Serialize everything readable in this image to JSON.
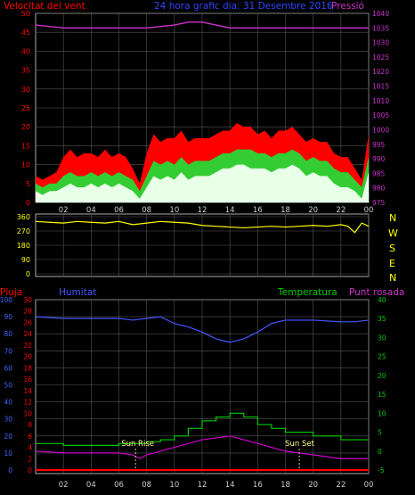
{
  "header": {
    "left_label": "Velocitat del vent",
    "center_label": "24 hora grafic dia:  31 Desembre 2016",
    "right_label": "Pressió"
  },
  "wind_dir_axis": [
    "N",
    "W",
    "S",
    "E",
    "N"
  ],
  "lower_header": {
    "rain": "Pluja",
    "humidity": "Humitat",
    "temperature": "Temperatura",
    "dewpoint": "Punt rosada"
  },
  "annotations": {
    "sunrise": "Sun Rise",
    "sunset": "Sun Set"
  },
  "colors": {
    "wind_gust": "#ff0000",
    "wind_avg": "#33cc33",
    "wind_low": "#e8ffe8",
    "pressure": "#cc33cc",
    "direction": "#ffff00",
    "humidity": "#4455ff",
    "temperature": "#00cc00",
    "dewpoint": "#cc00cc",
    "rain": "#ff0000",
    "grid": "#555555",
    "axis_red": "#ff0000",
    "axis_blue": "#4466ff",
    "axis_green": "#00cc00",
    "axis_magenta": "#cc33cc"
  },
  "chart_data": [
    {
      "type": "line",
      "x_ticks": [
        "02",
        "04",
        "06",
        "08",
        "10",
        "12",
        "14",
        "16",
        "18",
        "20",
        "22",
        "00"
      ],
      "y_ticks_left": [
        0,
        5,
        10,
        15,
        20,
        25,
        30,
        35,
        40,
        45,
        50
      ],
      "y_ticks_right": [
        975,
        980,
        985,
        990,
        995,
        1000,
        1005,
        1010,
        1015,
        1020,
        1025,
        1030,
        1035,
        1040
      ],
      "ylim_left": [
        0,
        50
      ],
      "ylim_right": [
        975,
        1040
      ],
      "xlim": [
        0,
        24
      ],
      "series": [
        {
          "key": "gust",
          "x": [
            0,
            0.5,
            1,
            1.5,
            2,
            2.5,
            3,
            3.5,
            4,
            4.5,
            5,
            5.5,
            6,
            6.5,
            7,
            7.5,
            8,
            8.5,
            9,
            9.5,
            10,
            10.5,
            11,
            11.5,
            12,
            12.5,
            13,
            13.5,
            14,
            14.5,
            15,
            15.5,
            16,
            16.5,
            17,
            17.5,
            18,
            18.5,
            19,
            19.5,
            20,
            20.5,
            21,
            21.5,
            22,
            22.5,
            23,
            23.5,
            24
          ],
          "values": [
            7,
            6,
            7,
            8,
            12,
            14,
            12,
            13,
            13,
            12,
            14,
            12,
            13,
            12,
            9,
            5,
            13,
            18,
            16,
            17,
            17,
            19,
            16,
            17,
            17,
            17,
            18,
            19,
            19,
            21,
            20,
            20,
            18,
            19,
            17,
            19,
            19,
            20,
            18,
            16,
            17,
            16,
            16,
            13,
            12,
            12,
            9,
            6,
            18
          ]
        },
        {
          "key": "avg",
          "x": [
            0,
            0.5,
            1,
            1.5,
            2,
            2.5,
            3,
            3.5,
            4,
            4.5,
            5,
            5.5,
            6,
            6.5,
            7,
            7.5,
            8,
            8.5,
            9,
            9.5,
            10,
            10.5,
            11,
            11.5,
            12,
            12.5,
            13,
            13.5,
            14,
            14.5,
            15,
            15.5,
            16,
            16.5,
            17,
            17.5,
            18,
            18.5,
            19,
            19.5,
            20,
            20.5,
            21,
            21.5,
            22,
            22.5,
            23,
            23.5,
            24
          ],
          "values": [
            5,
            4,
            5,
            5,
            7,
            8,
            7,
            7,
            8,
            7,
            8,
            7,
            8,
            7,
            6,
            3,
            7,
            11,
            10,
            11,
            10,
            12,
            10,
            11,
            11,
            11,
            12,
            13,
            13,
            14,
            14,
            14,
            13,
            13,
            12,
            13,
            13,
            14,
            13,
            11,
            12,
            11,
            11,
            9,
            8,
            8,
            6,
            4,
            12
          ]
        },
        {
          "key": "low",
          "x": [
            0,
            0.5,
            1,
            1.5,
            2,
            2.5,
            3,
            3.5,
            4,
            4.5,
            5,
            5.5,
            6,
            6.5,
            7,
            7.5,
            8,
            8.5,
            9,
            9.5,
            10,
            10.5,
            11,
            11.5,
            12,
            12.5,
            13,
            13.5,
            14,
            14.5,
            15,
            15.5,
            16,
            16.5,
            17,
            17.5,
            18,
            18.5,
            19,
            19.5,
            20,
            20.5,
            21,
            21.5,
            22,
            22.5,
            23,
            23.5,
            24
          ],
          "values": [
            3,
            2,
            3,
            3,
            4,
            5,
            4,
            4,
            5,
            4,
            5,
            4,
            5,
            4,
            3,
            1,
            4,
            7,
            6,
            7,
            6,
            8,
            6,
            7,
            7,
            7,
            8,
            9,
            9,
            10,
            10,
            9,
            9,
            9,
            8,
            9,
            9,
            10,
            9,
            7,
            8,
            7,
            7,
            5,
            4,
            4,
            3,
            1,
            8
          ]
        },
        {
          "key": "pressure",
          "axis": "right",
          "x": [
            0,
            2,
            4,
            6,
            8,
            10,
            11,
            12,
            13,
            14,
            16,
            18,
            20,
            22,
            24
          ],
          "values": [
            1036,
            1035,
            1035,
            1035,
            1035,
            1036,
            1037,
            1037,
            1036,
            1035,
            1035,
            1035,
            1035,
            1035,
            1035
          ]
        }
      ]
    },
    {
      "type": "line",
      "y_ticks": [
        0,
        90,
        180,
        270,
        360
      ],
      "ylim": [
        0,
        360
      ],
      "xlim": [
        0,
        24
      ],
      "series": [
        {
          "key": "direction",
          "x": [
            0,
            1,
            2,
            3,
            4,
            5,
            6,
            7,
            8,
            9,
            10,
            11,
            12,
            13,
            14,
            15,
            16,
            17,
            18,
            19,
            20,
            21,
            22,
            22.5,
            23,
            23.5,
            24
          ],
          "values": [
            330,
            325,
            320,
            330,
            325,
            320,
            330,
            310,
            320,
            330,
            325,
            320,
            305,
            300,
            295,
            290,
            295,
            300,
            295,
            300,
            305,
            300,
            310,
            300,
            260,
            320,
            300
          ]
        }
      ]
    },
    {
      "type": "line",
      "x_ticks": [
        "02",
        "04",
        "06",
        "08",
        "10",
        "12",
        "14",
        "16",
        "18",
        "20",
        "22",
        "00"
      ],
      "y_ticks_rain": [
        0,
        10,
        20,
        30,
        40,
        50,
        60,
        70,
        80,
        90,
        100
      ],
      "y_ticks_humidity": [
        0,
        2,
        4,
        6,
        8,
        10,
        12,
        14,
        16,
        18,
        20,
        22,
        24,
        26,
        28,
        30
      ],
      "y_ticks_temperature": [
        -5,
        0,
        5,
        10,
        15,
        20,
        25,
        30,
        35,
        40
      ],
      "ylim_temperature": [
        -5,
        40
      ],
      "xlim": [
        0,
        24
      ],
      "series": [
        {
          "key": "humidity",
          "axis": "rain",
          "x": [
            0,
            2,
            4,
            6,
            7,
            8,
            9,
            10,
            11,
            12,
            13,
            14,
            15,
            16,
            17,
            18,
            20,
            22,
            23,
            24
          ],
          "values": [
            90,
            89,
            89,
            89,
            88,
            89,
            90,
            86,
            84,
            81,
            77,
            75,
            77,
            81,
            86,
            88,
            88,
            87,
            87,
            88
          ]
        },
        {
          "key": "temperature",
          "axis": "temperature",
          "x": [
            0,
            2,
            4,
            6,
            7,
            8,
            9,
            10,
            11,
            12,
            13,
            14,
            15,
            16,
            17,
            18,
            20,
            22,
            24
          ],
          "values": [
            2,
            1.5,
            1.5,
            2,
            2,
            2.5,
            3,
            4,
            6,
            8,
            9,
            10,
            9,
            7,
            6,
            5,
            4,
            3,
            3
          ]
        },
        {
          "key": "dewpoint",
          "axis": "temperature",
          "x": [
            0,
            2,
            4,
            6,
            7,
            7.5,
            8,
            9,
            10,
            11,
            12,
            13,
            14,
            15,
            16,
            17,
            18,
            20,
            22,
            24
          ],
          "values": [
            0,
            -0.5,
            -0.5,
            -0.5,
            -1,
            -2,
            -1,
            0,
            1,
            2,
            3,
            3.5,
            4,
            3,
            2,
            1,
            0,
            -1,
            -2,
            -2
          ]
        },
        {
          "key": "rain",
          "axis": "rain",
          "x": [
            0,
            24
          ],
          "values": [
            0,
            0
          ]
        }
      ],
      "sunrise_hour": 7.2,
      "sunset_hour": 19.0
    }
  ]
}
